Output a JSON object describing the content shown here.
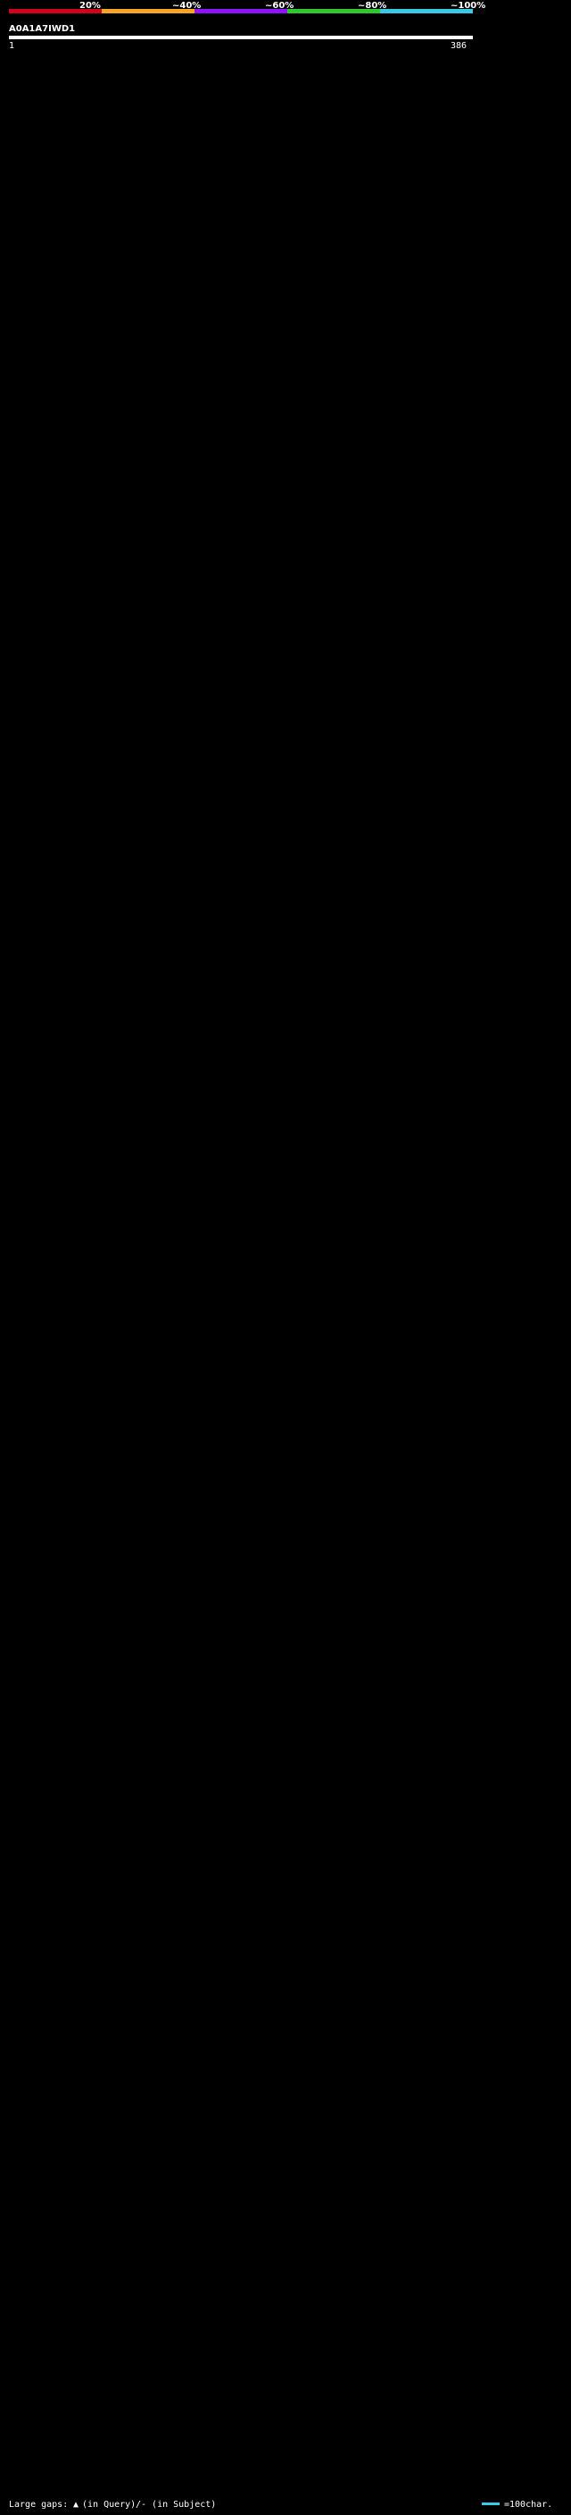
{
  "chart_data": {
    "type": "alignment-overview",
    "title": "A0A1A7IWD1",
    "query_length": 386,
    "query_start_label": "1",
    "query_end_label": "386",
    "identity_scale": [
      {
        "label": "20%",
        "color": "#d0021b"
      },
      {
        "label": "~40%",
        "color": "#f5a623"
      },
      {
        "label": "~60%",
        "color": "#9013fe"
      },
      {
        "label": "~80%",
        "color": "#2ec92e"
      },
      {
        "label": "~100%",
        "color": "#38c8e8"
      }
    ],
    "legend": {
      "large_gaps": "Large gaps:",
      "in_query": "(in Query)",
      "in_subject": "/- (in Subject)",
      "scale_bar": "=100char."
    },
    "hits": []
  }
}
